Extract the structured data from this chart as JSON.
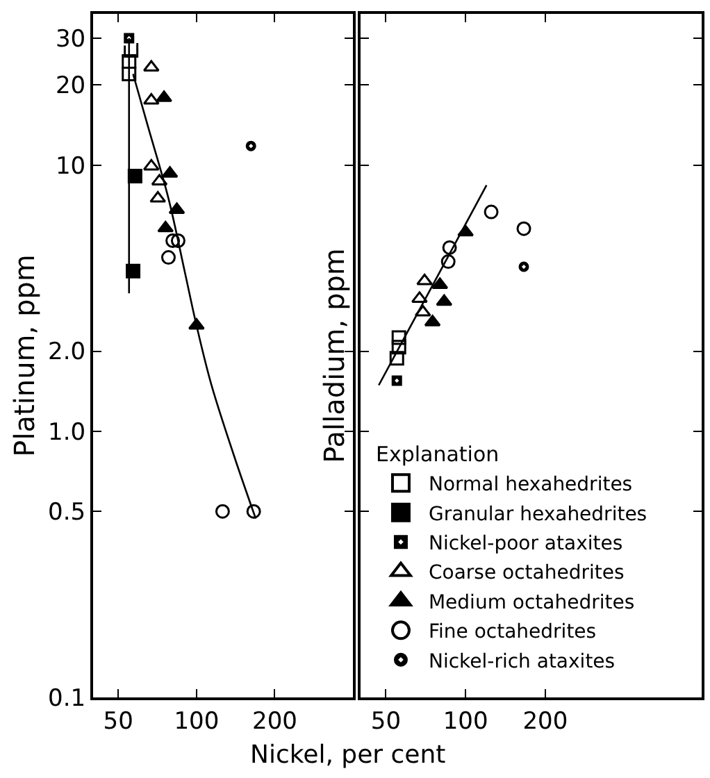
{
  "chart_data": [
    {
      "type": "scatter",
      "xlabel": "Nickel, per cent",
      "ylabel": "Platinum, ppm",
      "log": "xy",
      "xlim": [
        40,
        400
      ],
      "xticks": [
        50,
        100,
        200
      ],
      "ylim": [
        0.1,
        37
      ],
      "yticks": [
        30,
        20,
        10,
        {
          "value": 2,
          "label": "2.0"
        },
        {
          "value": 1,
          "label": "1.0"
        },
        0.5,
        0.1
      ],
      "legend": "right",
      "legend_title": "Explanation",
      "series": [
        {
          "name": "Normal hexahedrites",
          "color": "#000000",
          "marker": "square-open",
          "x": [
            55,
            55,
            56
          ],
          "values": [
            22,
            24.5,
            27
          ]
        },
        {
          "name": "Granular hexahedrites",
          "color": "#000000",
          "marker": "square",
          "x": [
            58,
            57
          ],
          "values": [
            9.1,
            4.0
          ]
        },
        {
          "name": "Nickel-poor ataxites",
          "color": "#000000",
          "marker": "square-dot",
          "x": [
            55
          ],
          "values": [
            30
          ]
        },
        {
          "name": "Coarse octahedrites",
          "color": "#000000",
          "marker": "triangle-open",
          "x": [
            67,
            67,
            67,
            72,
            71
          ],
          "values": [
            23.3,
            17.5,
            9.9,
            8.7,
            7.5
          ]
        },
        {
          "name": "Medium octahedrites",
          "color": "#000000",
          "marker": "triangle",
          "x": [
            75,
            79,
            84,
            76,
            100
          ],
          "values": [
            17.9,
            9.3,
            6.8,
            5.8,
            2.5
          ]
        },
        {
          "name": "Fine octahedrites",
          "color": "#000000",
          "marker": "circle-open",
          "x": [
            85,
            81,
            78,
            126,
            166
          ],
          "values": [
            5.2,
            5.2,
            4.5,
            0.5,
            0.5
          ]
        },
        {
          "name": "Nickel-rich ataxites",
          "color": "#000000",
          "marker": "circle-dot",
          "x": [
            162
          ],
          "values": [
            11.8
          ]
        },
        {
          "type": "line",
          "color": "#000000",
          "marker": "none",
          "x": [
            55,
            55
          ],
          "values": [
            30,
            3.3
          ]
        },
        {
          "type": "line",
          "color": "#000000",
          "marker": "none",
          "x": [
            57,
            65,
            78,
            90,
            100,
            114,
            140,
            169
          ],
          "values": [
            22,
            14,
            7.5,
            4,
            2.5,
            1.5,
            0.8,
            0.47
          ]
        }
      ]
    },
    {
      "type": "scatter",
      "ylabel": "Palladium, ppm",
      "log": "xy",
      "xlim": [
        40,
        780
      ],
      "xticks": [
        50,
        100,
        200
      ],
      "ylim": [
        0.1,
        37
      ],
      "yticks": [
        30,
        20,
        10,
        2,
        1,
        0.5,
        0.1
      ],
      "tick_labels": "x",
      "series": [
        {
          "color": "#000000",
          "marker": "square-open",
          "x": [
            56,
            56,
            55
          ],
          "values": [
            2.25,
            2.07,
            1.88
          ]
        },
        {
          "color": "#000000",
          "marker": "square-dot",
          "x": [
            55
          ],
          "values": [
            1.55
          ]
        },
        {
          "color": "#000000",
          "marker": "triangle-open",
          "x": [
            70,
            67,
            69
          ],
          "values": [
            3.67,
            3.15,
            2.8
          ]
        },
        {
          "color": "#000000",
          "marker": "triangle",
          "x": [
            100,
            80,
            83,
            75
          ],
          "values": [
            5.6,
            3.55,
            3.07,
            2.57
          ]
        },
        {
          "color": "#000000",
          "marker": "circle-open",
          "x": [
            87,
            86,
            125,
            166
          ],
          "values": [
            4.9,
            4.34,
            6.67,
            5.77
          ]
        },
        {
          "color": "#000000",
          "marker": "circle-dot",
          "x": [
            166
          ],
          "values": [
            4.15
          ]
        },
        {
          "type": "line",
          "color": "#000000",
          "marker": "none",
          "x": [
            47,
            120
          ],
          "values": [
            1.49,
            8.4
          ]
        }
      ]
    }
  ]
}
